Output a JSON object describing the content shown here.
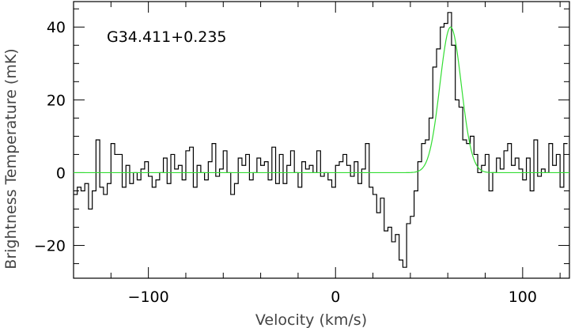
{
  "chart_data": {
    "type": "line",
    "title": "",
    "annotation": "G34.411+0.235",
    "xlabel": "Velocity (km/s)",
    "ylabel": "Brightness Temperature (mK)",
    "xlim": [
      -140,
      125
    ],
    "ylim": [
      -29,
      47
    ],
    "xticks_major": [
      -100,
      0,
      100
    ],
    "xtick_labels": [
      "−100",
      "0",
      "100"
    ],
    "yticks_major": [
      -20,
      0,
      20,
      40
    ],
    "ytick_labels": [
      "−20",
      "0",
      "20",
      "40"
    ],
    "grid": false,
    "legend": "none",
    "series": [
      {
        "style": "steps",
        "color": "#000000",
        "x": [
          -139,
          -137,
          -135,
          -133,
          -131,
          -129,
          -127,
          -125,
          -123,
          -121,
          -119,
          -117,
          -115,
          -113,
          -111,
          -109,
          -107,
          -105,
          -103,
          -101,
          -99,
          -97,
          -95,
          -93,
          -91,
          -89,
          -87,
          -85,
          -83,
          -81,
          -79,
          -77,
          -75,
          -73,
          -71,
          -69,
          -67,
          -65,
          -63,
          -61,
          -59,
          -57,
          -55,
          -53,
          -51,
          -49,
          -47,
          -45,
          -43,
          -41,
          -39,
          -37,
          -35,
          -33,
          -31,
          -29,
          -27,
          -25,
          -23,
          -21,
          -19,
          -17,
          -15,
          -13,
          -11,
          -9,
          -7,
          -5,
          -3,
          -1,
          1,
          3,
          5,
          7,
          9,
          11,
          13,
          15,
          17,
          19,
          21,
          23,
          25,
          27,
          29,
          31,
          33,
          35,
          37,
          39,
          41,
          43,
          45,
          47,
          49,
          51,
          53,
          55,
          57,
          59,
          61,
          63,
          65,
          67,
          69,
          71,
          73,
          75,
          77,
          79,
          81,
          83,
          85,
          87,
          89,
          91,
          93,
          95,
          97,
          99,
          101,
          103,
          105,
          107,
          109,
          111,
          113,
          115,
          117,
          119,
          121,
          123
        ],
        "y": [
          -6,
          -4,
          -5,
          -3,
          -10,
          -5,
          9,
          -4,
          -6,
          -3,
          8,
          5,
          5,
          -4,
          2,
          -3,
          0,
          -2,
          1,
          3,
          -1,
          -4,
          -2,
          0,
          4,
          -3,
          5,
          1,
          2,
          -2,
          6,
          7,
          -4,
          2,
          0,
          -2,
          3,
          8,
          -1,
          1,
          6,
          0,
          -6,
          -3,
          4,
          2,
          5,
          -2,
          0,
          4,
          2,
          3,
          -2,
          7,
          -3,
          5,
          -3,
          2,
          6,
          0,
          -4,
          3,
          1,
          2,
          0,
          6,
          -1,
          0,
          -2,
          -4,
          2,
          3,
          5,
          2,
          -1,
          3,
          -3,
          1,
          8,
          -4,
          -6,
          -11,
          -7,
          -16,
          -15,
          -19,
          -17,
          -24,
          -26,
          -14,
          -12,
          -5,
          3,
          8,
          9,
          15,
          29,
          34,
          40,
          41,
          44,
          35,
          20,
          18,
          9,
          8,
          10,
          5,
          0,
          2,
          5,
          -5,
          0,
          4,
          1,
          6,
          8,
          2,
          4,
          1,
          -2,
          4,
          -5,
          9,
          -1,
          1,
          0,
          8,
          2,
          5,
          -4,
          8
        ]
      },
      {
        "style": "smooth",
        "color": "#33dd33",
        "model": "gaussian",
        "amplitude": 40,
        "center": 61.5,
        "sigma": 5.7,
        "baseline": 0,
        "range": [
          -140,
          125
        ]
      }
    ]
  }
}
